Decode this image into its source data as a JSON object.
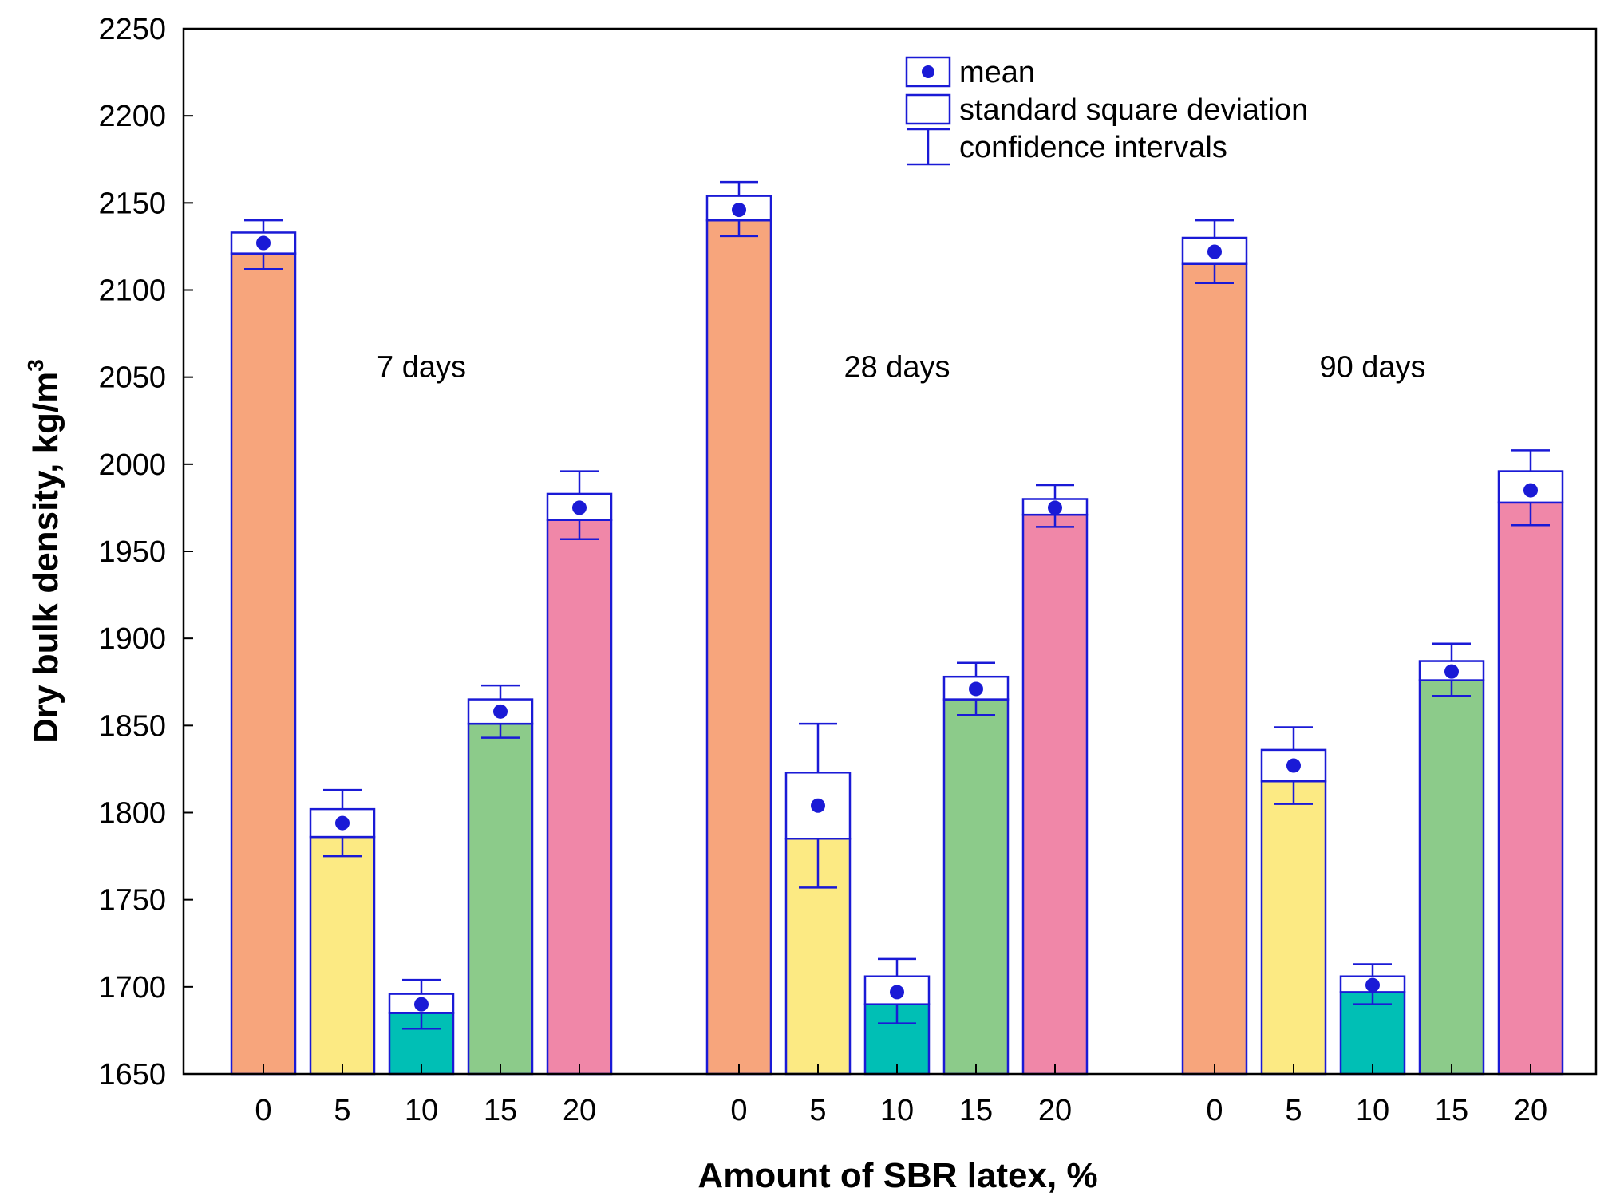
{
  "chart_data": {
    "type": "bar",
    "xlabel": "Amount of SBR latex, %",
    "ylabel": "Dry bulk density, kg/m",
    "ylabel_superscript": "3",
    "ylim": [
      1650,
      2250
    ],
    "yticks": [
      1650,
      1700,
      1750,
      1800,
      1850,
      1900,
      1950,
      2000,
      2050,
      2100,
      2150,
      2200,
      2250
    ],
    "categories": [
      "0",
      "5",
      "10",
      "15",
      "20"
    ],
    "legend": {
      "position": "top-right",
      "items": [
        {
          "symbol": "mean",
          "label": "mean"
        },
        {
          "symbol": "box",
          "label": "standard square deviation"
        },
        {
          "symbol": "whisker",
          "label": "confidence intervals"
        }
      ]
    },
    "colors": {
      "0": "#f7a57c",
      "5": "#fcea83",
      "10": "#00bfb5",
      "15": "#8ccb8a",
      "20": "#f087a8",
      "outline": "#1a1ad6",
      "mean": "#1a1ad6"
    },
    "groups": [
      {
        "name": "7 days",
        "points": [
          {
            "category": "0",
            "mean": 2127,
            "sd_low": 2121,
            "sd_high": 2133,
            "ci_low": 2112,
            "ci_high": 2140
          },
          {
            "category": "5",
            "mean": 1794,
            "sd_low": 1786,
            "sd_high": 1802,
            "ci_low": 1775,
            "ci_high": 1813
          },
          {
            "category": "10",
            "mean": 1690,
            "sd_low": 1685,
            "sd_high": 1696,
            "ci_low": 1676,
            "ci_high": 1704
          },
          {
            "category": "15",
            "mean": 1858,
            "sd_low": 1851,
            "sd_high": 1865,
            "ci_low": 1843,
            "ci_high": 1873
          },
          {
            "category": "20",
            "mean": 1975,
            "sd_low": 1968,
            "sd_high": 1983,
            "ci_low": 1957,
            "ci_high": 1996
          }
        ]
      },
      {
        "name": "28 days",
        "points": [
          {
            "category": "0",
            "mean": 2146,
            "sd_low": 2140,
            "sd_high": 2154,
            "ci_low": 2131,
            "ci_high": 2162
          },
          {
            "category": "5",
            "mean": 1804,
            "sd_low": 1785,
            "sd_high": 1823,
            "ci_low": 1757,
            "ci_high": 1851
          },
          {
            "category": "10",
            "mean": 1697,
            "sd_low": 1690,
            "sd_high": 1706,
            "ci_low": 1679,
            "ci_high": 1716
          },
          {
            "category": "15",
            "mean": 1871,
            "sd_low": 1865,
            "sd_high": 1878,
            "ci_low": 1856,
            "ci_high": 1886
          },
          {
            "category": "20",
            "mean": 1975,
            "sd_low": 1971,
            "sd_high": 1980,
            "ci_low": 1964,
            "ci_high": 1988
          }
        ]
      },
      {
        "name": "90 days",
        "points": [
          {
            "category": "0",
            "mean": 2122,
            "sd_low": 2115,
            "sd_high": 2130,
            "ci_low": 2104,
            "ci_high": 2140
          },
          {
            "category": "5",
            "mean": 1827,
            "sd_low": 1818,
            "sd_high": 1836,
            "ci_low": 1805,
            "ci_high": 1849
          },
          {
            "category": "10",
            "mean": 1701,
            "sd_low": 1697,
            "sd_high": 1706,
            "ci_low": 1690,
            "ci_high": 1713
          },
          {
            "category": "15",
            "mean": 1881,
            "sd_low": 1876,
            "sd_high": 1887,
            "ci_low": 1867,
            "ci_high": 1897
          },
          {
            "category": "20",
            "mean": 1985,
            "sd_low": 1978,
            "sd_high": 1996,
            "ci_low": 1965,
            "ci_high": 2008
          }
        ]
      }
    ]
  }
}
